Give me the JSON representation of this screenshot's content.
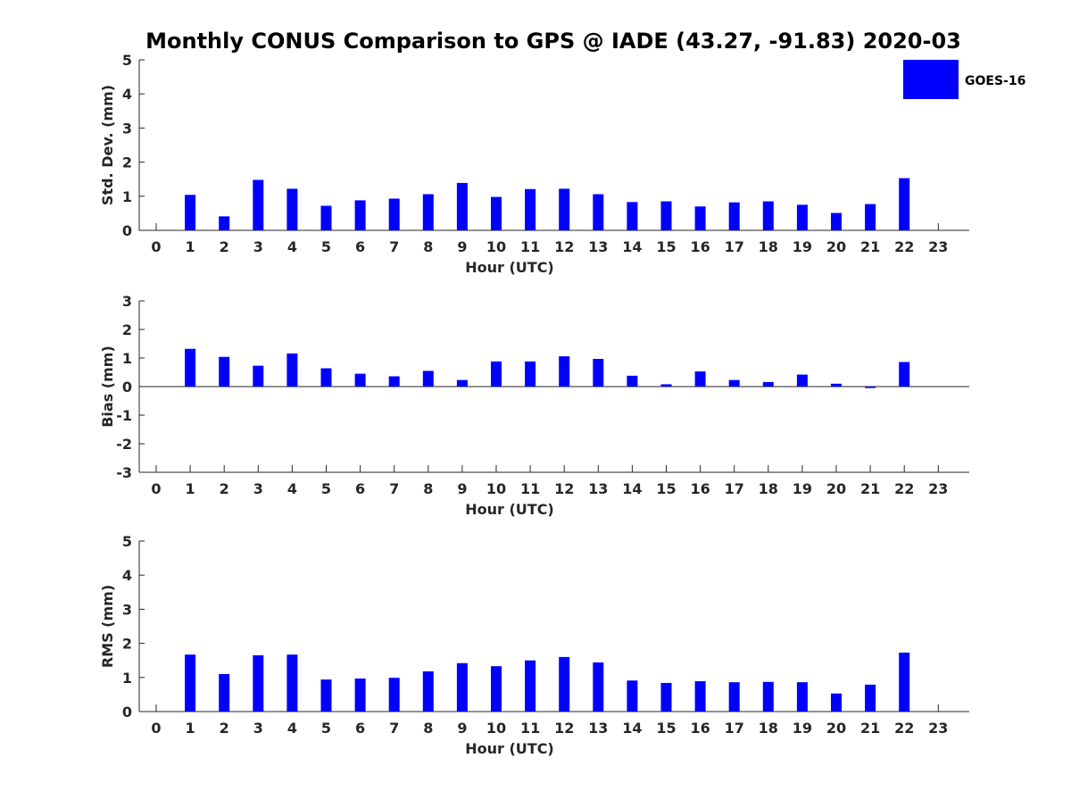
{
  "title": "Monthly CONUS Comparison to GPS @ IADE (43.27, -91.83) 2020-03",
  "colors": {
    "bar": "#0000ff",
    "axis": "#262626",
    "text": "#262626"
  },
  "chart_data": {
    "type": "bar",
    "title": "Monthly CONUS Comparison to GPS @ IADE (43.27, -91.83) 2020-03",
    "legend": {
      "label": "GOES-16",
      "position": "top-right"
    },
    "categories": [
      "0",
      "1",
      "2",
      "3",
      "4",
      "5",
      "6",
      "7",
      "8",
      "9",
      "10",
      "11",
      "12",
      "13",
      "14",
      "15",
      "16",
      "17",
      "18",
      "19",
      "20",
      "21",
      "22",
      "23"
    ],
    "panels": [
      {
        "id": "std",
        "ylabel": "Std. Dev. (mm)",
        "xlabel": "Hour (UTC)",
        "ylim": [
          0,
          5
        ],
        "yticks": [
          "0",
          "1",
          "2",
          "3",
          "4",
          "5"
        ],
        "series": [
          {
            "name": "GOES-16",
            "values": [
              null,
              1.04,
              0.41,
              1.48,
              1.22,
              0.72,
              0.88,
              0.93,
              1.06,
              1.39,
              0.98,
              1.21,
              1.22,
              1.06,
              0.83,
              0.85,
              0.7,
              0.82,
              0.85,
              0.75,
              0.51,
              0.77,
              1.53,
              null
            ]
          }
        ]
      },
      {
        "id": "bias",
        "ylabel": "Bias (mm)",
        "xlabel": "Hour (UTC)",
        "ylim": [
          -3,
          3
        ],
        "yticks": [
          "-3",
          "-2",
          "-1",
          "0",
          "1",
          "2",
          "3"
        ],
        "series": [
          {
            "name": "GOES-16",
            "values": [
              null,
              1.32,
              1.04,
              0.73,
              1.16,
              0.64,
              0.45,
              0.36,
              0.55,
              0.23,
              0.88,
              0.88,
              1.06,
              0.97,
              0.38,
              0.08,
              0.53,
              0.23,
              0.16,
              0.42,
              0.1,
              -0.05,
              0.86,
              null
            ]
          }
        ]
      },
      {
        "id": "rms",
        "ylabel": "RMS (mm)",
        "xlabel": "Hour (UTC)",
        "ylim": [
          0,
          5
        ],
        "yticks": [
          "0",
          "1",
          "2",
          "3",
          "4",
          "5"
        ],
        "series": [
          {
            "name": "GOES-16",
            "values": [
              null,
              1.67,
              1.1,
              1.65,
              1.67,
              0.94,
              0.97,
              0.99,
              1.18,
              1.42,
              1.33,
              1.5,
              1.6,
              1.44,
              0.91,
              0.84,
              0.89,
              0.86,
              0.87,
              0.86,
              0.53,
              0.79,
              1.73,
              null
            ]
          }
        ]
      }
    ]
  }
}
